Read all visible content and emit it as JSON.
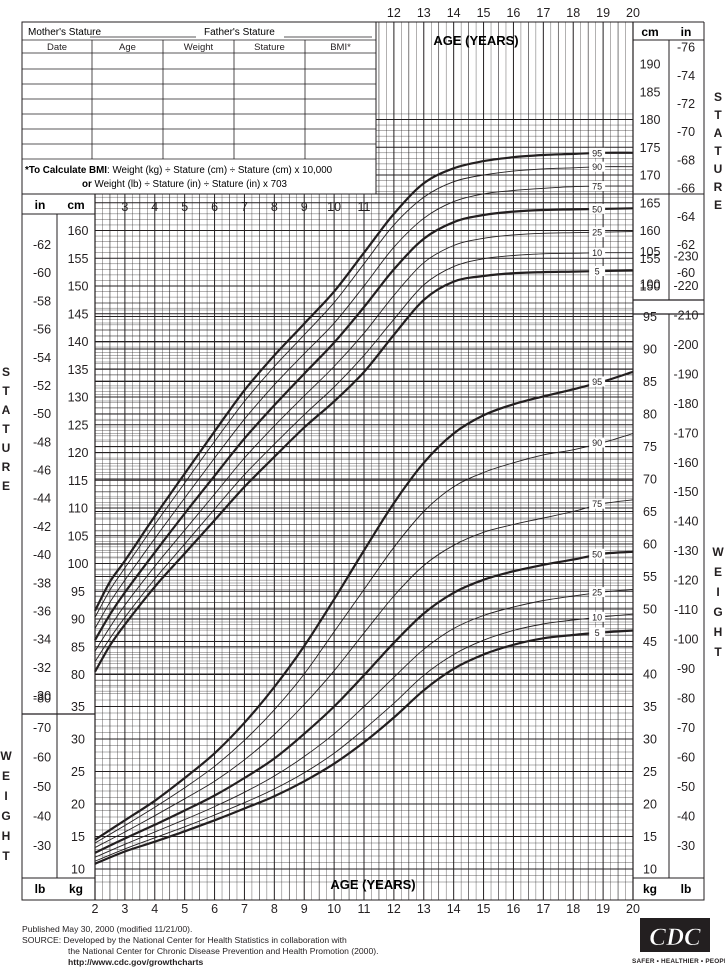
{
  "form": {
    "mother_label": "Mother's Stature",
    "father_label": "Father's Stature",
    "columns": [
      "Date",
      "Age",
      "Weight",
      "Stature",
      "BMI*"
    ],
    "bmi_note_bold": "*To Calculate BMI",
    "bmi_note_line1": ": Weight (kg) ÷ Stature (cm) ÷ Stature (cm) x 10,000",
    "bmi_note_line2_bold": "or",
    "bmi_note_line2": " Weight (lb) ÷ Stature (in) ÷ Stature (in) x 703"
  },
  "labels": {
    "age_years": "AGE (YEARS)",
    "stature": "STATURE",
    "weight": "WEIGHT",
    "cm": "cm",
    "in": "in",
    "kg": "kg",
    "lb": "lb"
  },
  "footer": {
    "published": "Published May 30, 2000 (modified 11/21/00).",
    "source1": "SOURCE: Developed by the National Center for Health Statistics in collaboration with",
    "source2": "the National Center for Chronic Disease Prevention and Health Promotion (2000).",
    "url": "http://www.cdc.gov/growthcharts"
  },
  "logo": {
    "text": "CDC",
    "tagline": "SAFER • HEALTHIER • PEOPLE™"
  },
  "chart_data": [
    {
      "type": "line",
      "name": "stature-for-age",
      "x_label": "AGE (YEARS)",
      "y_label": "STATURE",
      "y_unit": "cm",
      "xlim": [
        2,
        20
      ],
      "ylim": [
        77,
        180
      ],
      "x": [
        2,
        2.5,
        3,
        4,
        5,
        6,
        7,
        8,
        9,
        10,
        11,
        12,
        13,
        14,
        15,
        16,
        17,
        18,
        19,
        20
      ],
      "x_ticks": [
        2,
        3,
        4,
        5,
        6,
        7,
        8,
        9,
        10,
        11,
        12,
        13,
        14,
        15,
        16,
        17,
        18,
        19,
        20
      ],
      "series": [
        {
          "name": "95",
          "values": [
            91.5,
            96.7,
            100.5,
            108.5,
            116.2,
            123.8,
            131.2,
            137.5,
            143.2,
            149.0,
            156.0,
            163.0,
            168.5,
            171.2,
            172.5,
            173.2,
            173.6,
            173.8,
            174.0,
            174.0
          ]
        },
        {
          "name": "90",
          "values": [
            90.3,
            95.2,
            99.2,
            107.0,
            114.5,
            122.0,
            129.2,
            135.5,
            141.2,
            147.0,
            154.0,
            161.0,
            166.0,
            168.8,
            170.0,
            170.7,
            171.1,
            171.3,
            171.5,
            171.5
          ]
        },
        {
          "name": "75",
          "values": [
            88.3,
            93.0,
            97.0,
            104.5,
            111.8,
            119.0,
            126.0,
            132.2,
            137.8,
            143.3,
            150.0,
            157.0,
            162.2,
            165.2,
            166.6,
            167.2,
            167.6,
            167.9,
            168.0,
            168.0
          ]
        },
        {
          "name": "50",
          "values": [
            86.2,
            90.8,
            94.8,
            102.0,
            109.0,
            115.8,
            122.5,
            128.5,
            134.2,
            139.8,
            146.2,
            153.0,
            158.5,
            161.5,
            162.8,
            163.4,
            163.7,
            163.8,
            163.9,
            164.0
          ]
        },
        {
          "name": "25",
          "values": [
            84.2,
            88.5,
            92.5,
            99.5,
            106.0,
            112.5,
            119.0,
            124.8,
            130.2,
            135.5,
            141.5,
            148.3,
            154.2,
            157.3,
            158.6,
            159.2,
            159.5,
            159.6,
            159.7,
            159.8
          ]
        },
        {
          "name": "10",
          "values": [
            82.3,
            86.5,
            90.3,
            97.2,
            103.5,
            109.8,
            116.0,
            121.5,
            126.8,
            131.8,
            137.5,
            144.0,
            150.2,
            153.5,
            154.9,
            155.5,
            155.8,
            155.9,
            156.0,
            156.0
          ]
        },
        {
          "name": "5",
          "values": [
            80.5,
            85.2,
            89.0,
            95.8,
            101.8,
            107.8,
            113.8,
            119.2,
            124.5,
            129.2,
            134.5,
            141.2,
            147.5,
            150.8,
            151.8,
            152.3,
            152.5,
            152.6,
            152.7,
            152.8
          ]
        }
      ]
    },
    {
      "type": "line",
      "name": "weight-for-age",
      "x_label": "AGE (YEARS)",
      "y_label": "WEIGHT",
      "y_unit": "kg",
      "xlim": [
        2,
        20
      ],
      "ylim": [
        8,
        105
      ],
      "x": [
        2,
        3,
        4,
        5,
        6,
        7,
        8,
        9,
        10,
        11,
        12,
        13,
        14,
        15,
        16,
        17,
        18,
        19,
        20
      ],
      "x_ticks": [
        2,
        3,
        4,
        5,
        6,
        7,
        8,
        9,
        10,
        11,
        12,
        13,
        14,
        15,
        16,
        17,
        18,
        19,
        20
      ],
      "series": [
        {
          "name": "95",
          "values": [
            14.5,
            17.5,
            20.5,
            24.0,
            27.8,
            32.5,
            38.0,
            44.3,
            51.5,
            59.0,
            66.3,
            72.5,
            77.0,
            79.8,
            81.5,
            82.7,
            83.8,
            85.0,
            86.5
          ]
        },
        {
          "name": "90",
          "values": [
            14.0,
            16.7,
            19.5,
            22.5,
            25.8,
            29.8,
            34.5,
            40.0,
            46.5,
            53.0,
            59.5,
            65.0,
            68.8,
            71.0,
            72.5,
            73.7,
            74.5,
            75.6,
            77.0
          ]
        },
        {
          "name": "75",
          "values": [
            13.3,
            15.7,
            18.2,
            20.8,
            23.5,
            26.8,
            30.7,
            35.3,
            40.5,
            46.3,
            52.0,
            56.7,
            59.8,
            61.8,
            63.0,
            64.0,
            65.0,
            66.2,
            66.8
          ]
        },
        {
          "name": "50",
          "values": [
            12.5,
            14.7,
            16.8,
            19.0,
            21.3,
            24.0,
            27.0,
            30.8,
            35.0,
            39.8,
            44.8,
            49.3,
            52.5,
            54.5,
            55.8,
            56.8,
            57.6,
            58.5,
            58.8
          ]
        },
        {
          "name": "25",
          "values": [
            11.8,
            13.8,
            15.7,
            17.6,
            19.6,
            21.8,
            24.3,
            27.3,
            30.8,
            35.0,
            39.5,
            43.8,
            47.0,
            49.0,
            50.3,
            51.3,
            52.0,
            52.6,
            53.0
          ]
        },
        {
          "name": "10",
          "values": [
            11.2,
            13.1,
            14.8,
            16.5,
            18.3,
            20.2,
            22.3,
            24.8,
            27.8,
            31.5,
            35.5,
            39.8,
            43.0,
            45.2,
            46.7,
            47.7,
            48.3,
            48.8,
            49.2
          ]
        },
        {
          "name": "5",
          "values": [
            10.8,
            12.7,
            14.2,
            15.8,
            17.5,
            19.3,
            21.2,
            23.5,
            26.2,
            29.5,
            33.3,
            37.5,
            40.8,
            43.0,
            44.5,
            45.5,
            46.0,
            46.4,
            46.7
          ]
        }
      ]
    }
  ]
}
